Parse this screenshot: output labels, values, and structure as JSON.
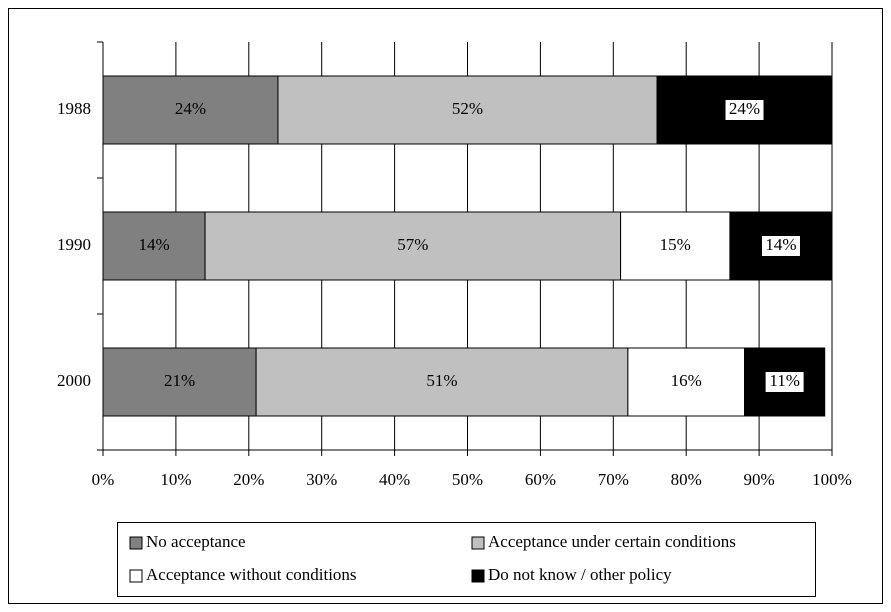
{
  "chart_data": {
    "type": "stacked_bar_horizontal",
    "categories": [
      "1988",
      "1990",
      "2000"
    ],
    "series": [
      {
        "name": "No acceptance",
        "color": "#808080",
        "values": [
          24,
          14,
          21
        ],
        "value_labels": [
          "24%",
          "14%",
          "21%"
        ]
      },
      {
        "name": "Acceptance under certain conditions",
        "color": "#c0c0c0",
        "values": [
          52,
          57,
          51
        ],
        "value_labels": [
          "52%",
          "57%",
          "51%"
        ]
      },
      {
        "name": "Acceptance without conditions",
        "color": "#ffffff",
        "values": [
          null,
          15,
          16
        ],
        "value_labels": [
          null,
          "15%",
          "16%"
        ]
      },
      {
        "name": "Do not know / other policy",
        "color": "#000000",
        "values": [
          24,
          14,
          11
        ],
        "value_labels": [
          "24%",
          "14%",
          "11%"
        ]
      }
    ],
    "xlim": [
      0,
      100
    ],
    "xticks": [
      {
        "value": 0,
        "label": "0%"
      },
      {
        "value": 10,
        "label": "10%"
      },
      {
        "value": 20,
        "label": "20%"
      },
      {
        "value": 30,
        "label": "30%"
      },
      {
        "value": 40,
        "label": "40%"
      },
      {
        "value": 50,
        "label": "50%"
      },
      {
        "value": 60,
        "label": "60%"
      },
      {
        "value": 70,
        "label": "70%"
      },
      {
        "value": 80,
        "label": "80%"
      },
      {
        "value": 90,
        "label": "90%"
      },
      {
        "value": 100,
        "label": "100%"
      }
    ],
    "grid": true,
    "legend": "bottom"
  }
}
